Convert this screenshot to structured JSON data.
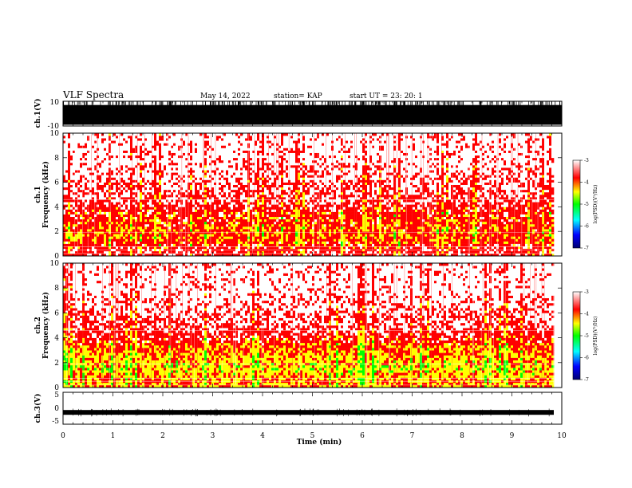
{
  "header": {
    "title": "VLF Spectra",
    "date": "May 14, 2022",
    "station": "station= KAP",
    "start": "start  UT =   23: 20: 1"
  },
  "colorbar": {
    "label": "log(PSD)(V²/Hz)",
    "ticks": [
      "-3",
      "-4",
      "-5",
      "-6",
      "-7"
    ],
    "colors": [
      "#000070",
      "#0000ff",
      "#00ffff",
      "#00ff00",
      "#ffff00",
      "#ff0000",
      "#ffffff"
    ]
  },
  "chart_data": [
    {
      "type": "line",
      "panel": "ch1-waveform",
      "ylabel": "ch.1(V)",
      "ylim": [
        -10,
        10
      ],
      "yticks": [
        "10",
        "-10"
      ],
      "xlim": [
        0,
        10
      ],
      "note": "saturated dense waveform spanning full range"
    },
    {
      "type": "heatmap",
      "panel": "ch1-spectrogram",
      "ylabel": "ch.1\nFrequency (kHz)",
      "ylim": [
        0,
        10
      ],
      "yticks": [
        "0",
        "2",
        "4",
        "6",
        "8",
        "10"
      ],
      "xlim": [
        0,
        9.85
      ],
      "clim": [
        -7,
        -3
      ],
      "band_profile": [
        {
          "freq_khz": 0.5,
          "level": -4.0
        },
        {
          "freq_khz": 1.5,
          "level": -4.3
        },
        {
          "freq_khz": 2.5,
          "level": -4.2
        },
        {
          "freq_khz": 3.5,
          "level": -4.1
        },
        {
          "freq_khz": 5.0,
          "level": -3.8
        },
        {
          "freq_khz": 8.0,
          "level": -3.5
        }
      ]
    },
    {
      "type": "heatmap",
      "panel": "ch2-spectrogram",
      "ylabel": "ch.2\nFrequency (kHz)",
      "ylim": [
        0,
        10
      ],
      "yticks": [
        "0",
        "2",
        "4",
        "6",
        "8",
        "10"
      ],
      "xlim": [
        0,
        9.85
      ],
      "clim": [
        -7,
        -3
      ],
      "band_profile": [
        {
          "freq_khz": 0.5,
          "level": -4.4
        },
        {
          "freq_khz": 1.5,
          "level": -4.7
        },
        {
          "freq_khz": 2.5,
          "level": -4.5
        },
        {
          "freq_khz": 3.5,
          "level": -4.2
        },
        {
          "freq_khz": 5.0,
          "level": -3.8
        },
        {
          "freq_khz": 8.0,
          "level": -3.5
        }
      ]
    },
    {
      "type": "line",
      "panel": "ch3-waveform",
      "ylabel": "ch.3(V)",
      "ylim": [
        -5,
        5
      ],
      "yticks": [
        "5",
        "0",
        "-5"
      ],
      "xlim": [
        0,
        10
      ],
      "xlabel": "Time (min)",
      "xticks": [
        "0",
        "1",
        "2",
        "3",
        "4",
        "5",
        "6",
        "7",
        "8",
        "9",
        "10"
      ],
      "mean_v": -1.3
    }
  ]
}
